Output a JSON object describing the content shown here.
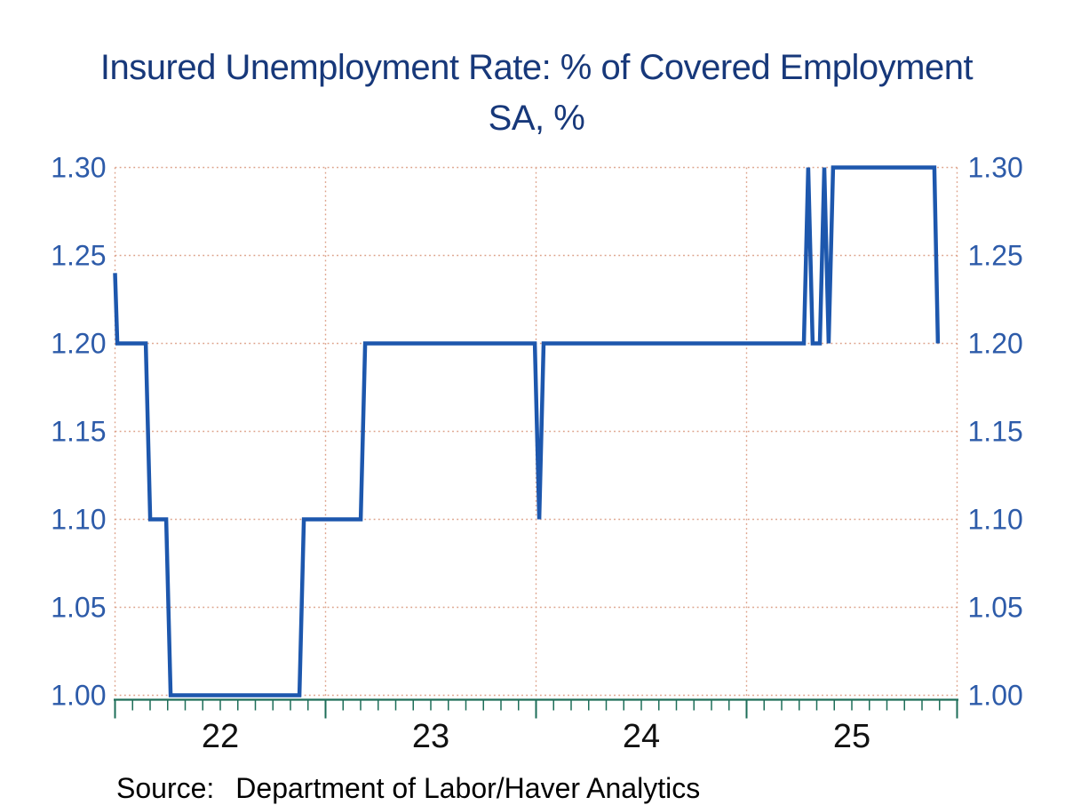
{
  "title": {
    "line1": "Insured Unemployment Rate: % of Covered Employment",
    "line2": "SA, %",
    "color": "#17387a"
  },
  "source": {
    "prefix": "Source:",
    "text": "Department of Labor/Haver Analytics"
  },
  "colors": {
    "line": "#1d57ad",
    "grid": "#dda189",
    "axis": "#1e6e58",
    "y_labels": "#2d5ba9",
    "x_labels": "#111111",
    "background": "#ffffff"
  },
  "chart_data": {
    "type": "line",
    "title": "Insured Unemployment Rate: % of Covered Employment",
    "subtitle": "SA, %",
    "xlim": [
      2022,
      2026
    ],
    "ylim": [
      1.0,
      1.3
    ],
    "y_ticks": [
      1.0,
      1.05,
      1.1,
      1.15,
      1.2,
      1.25,
      1.3
    ],
    "y_tick_labels": [
      "1.00",
      "1.05",
      "1.10",
      "1.15",
      "1.20",
      "1.25",
      "1.30"
    ],
    "y_labels_both_sides": true,
    "x_year_boundaries": [
      2022,
      2023,
      2024,
      2025,
      2026
    ],
    "x_tick_labels": [
      {
        "label": "22",
        "x": 2022.5
      },
      {
        "label": "23",
        "x": 2023.5
      },
      {
        "label": "24",
        "x": 2024.5
      },
      {
        "label": "25",
        "x": 2025.5
      }
    ],
    "grid": {
      "horizontal": "dotted at every y tick",
      "vertical": "dotted at year boundaries and plot edges"
    },
    "legend": "none",
    "points_format": "[decimal_year, percent]",
    "series": [
      {
        "name": "Insured Unemployment Rate (SA, %)",
        "points": [
          [
            2022.0,
            1.24
          ],
          [
            2022.011,
            1.2
          ],
          [
            2022.146,
            1.2
          ],
          [
            2022.167,
            1.1
          ],
          [
            2022.243,
            1.1
          ],
          [
            2022.264,
            1.0
          ],
          [
            2022.876,
            1.0
          ],
          [
            2022.897,
            1.1
          ],
          [
            2023.167,
            1.1
          ],
          [
            2023.188,
            1.2
          ],
          [
            2023.994,
            1.2
          ],
          [
            2024.015,
            1.1
          ],
          [
            2024.036,
            1.2
          ],
          [
            2025.272,
            1.2
          ],
          [
            2025.293,
            1.3
          ],
          [
            2025.314,
            1.2
          ],
          [
            2025.348,
            1.2
          ],
          [
            2025.369,
            1.3
          ],
          [
            2025.39,
            1.2
          ],
          [
            2025.411,
            1.3
          ],
          [
            2025.892,
            1.3
          ],
          [
            2025.909,
            1.2
          ]
        ]
      }
    ]
  }
}
